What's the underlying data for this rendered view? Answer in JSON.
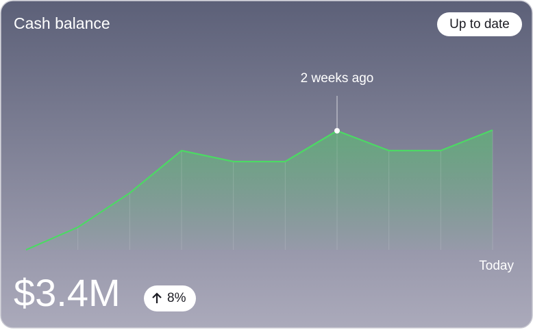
{
  "header": {
    "title": "Cash balance",
    "status": "Up to date"
  },
  "chart_data": {
    "type": "line",
    "categories": [
      null,
      null,
      null,
      null,
      null,
      null,
      "2 weeks ago",
      null,
      null,
      "Today"
    ],
    "values": [
      1.65,
      1.98,
      2.48,
      3.1,
      2.94,
      2.94,
      3.39,
      3.1,
      3.1,
      3.4
    ],
    "color": "#4cd964",
    "ylim": [
      1.65,
      3.4
    ]
  },
  "summary": {
    "value": "$3.4M",
    "change": "8%"
  }
}
